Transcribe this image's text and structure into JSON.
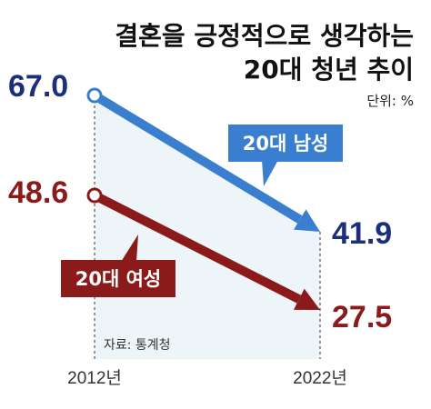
{
  "title_line1": "결혼을 긍정적으로 생각하는",
  "title_line2": "20대 청년 추이",
  "unit": "단위: %",
  "source": "자료: 통계청",
  "colors": {
    "male": "#3a7fcf",
    "female": "#8b1a1a",
    "male_value": "#1b2f7a",
    "female_value": "#8b1a1a",
    "band": "#eef5f8"
  },
  "chart_data": {
    "type": "line",
    "title": "결혼을 긍정적으로 생각하는 20대 청년 추이",
    "x": [
      "2012년",
      "2022년"
    ],
    "ylabel": "",
    "series": [
      {
        "name": "20대 남성",
        "values": [
          67.0,
          41.9
        ],
        "labels": [
          "67.0",
          "41.9"
        ]
      },
      {
        "name": "20대 여성",
        "values": [
          48.6,
          27.5
        ],
        "labels": [
          "48.6",
          "27.5"
        ]
      }
    ]
  }
}
